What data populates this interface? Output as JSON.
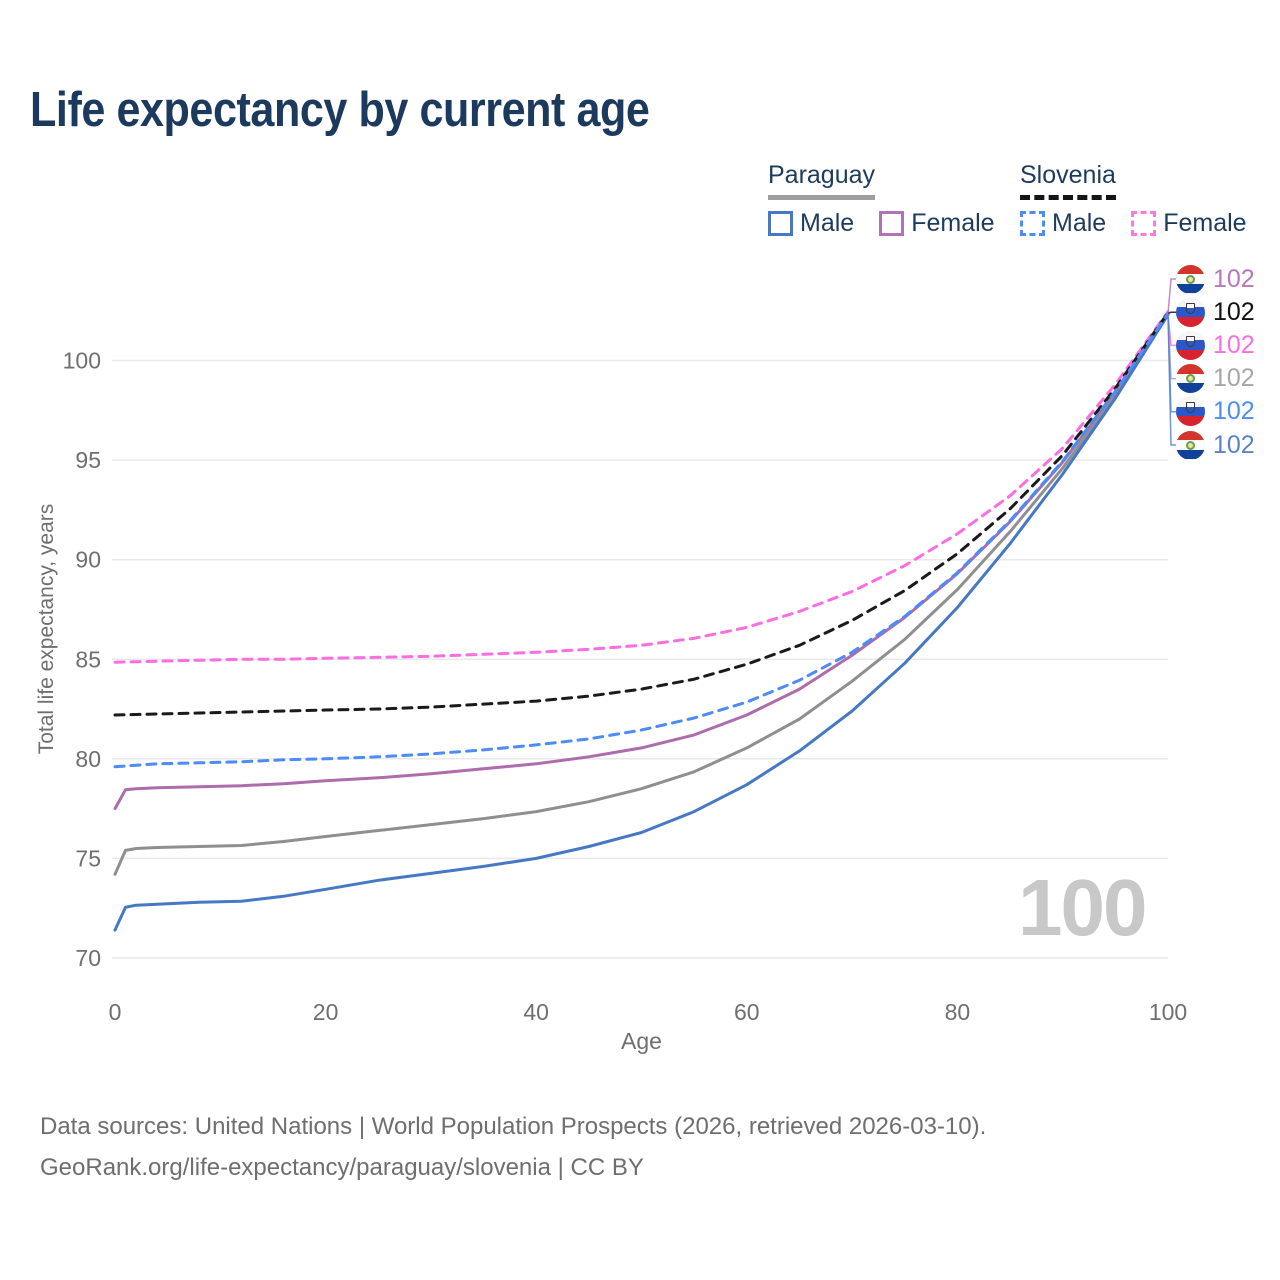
{
  "title": "Life expectancy by current age",
  "watermark": "100",
  "legend": {
    "groups": [
      {
        "name": "Paraguay",
        "line_style": "solid",
        "underline_color": "#9e9e9e",
        "items": [
          {
            "label": "Male",
            "color": "#4778c4"
          },
          {
            "label": "Female",
            "color": "#b273b2"
          }
        ]
      },
      {
        "name": "Slovenia",
        "line_style": "dashed",
        "underline_color": "#151515",
        "items": [
          {
            "label": "Male",
            "color": "#4d8bf5"
          },
          {
            "label": "Female",
            "color": "#fb7ae0"
          }
        ]
      }
    ]
  },
  "end_labels": [
    {
      "flag": "paraguay",
      "series": "paraguay-female",
      "value": "102",
      "color": "#b877b8"
    },
    {
      "flag": "slovenia",
      "series": "slovenia-both",
      "value": "102",
      "color": "#111111"
    },
    {
      "flag": "slovenia",
      "series": "slovenia-female",
      "value": "102",
      "color": "#fb6ee0"
    },
    {
      "flag": "paraguay",
      "series": "paraguay-both",
      "value": "102",
      "color": "#a6a6a6"
    },
    {
      "flag": "slovenia",
      "series": "slovenia-male",
      "value": "102",
      "color": "#4d8bf5"
    },
    {
      "flag": "paraguay",
      "series": "paraguay-male",
      "value": "102",
      "color": "#5b82c9"
    }
  ],
  "footer": {
    "line1": "Data sources: United Nations | World Population Prospects (2026, retrieved 2026-03-10).",
    "line2": "GeoRank.org/life-expectancy/paraguay/slovenia | CC BY"
  },
  "colors": {
    "title_text": "#1c3a5e",
    "legend_text": "#1d3b5e",
    "grid": "#e9e9e9",
    "tick_text": "#6f6f6f",
    "axis_title_text": "#6f6f6f",
    "watermark": "#c8c8c8",
    "footer_text": "#6e6e6e"
  },
  "chart_data": {
    "type": "line",
    "title": "Life expectancy by current age",
    "xlabel": "Age",
    "ylabel": "Total life expectancy, years",
    "xlim": [
      0,
      100
    ],
    "ylim": [
      70,
      102.5
    ],
    "xticks": [
      0,
      20,
      40,
      60,
      80,
      100
    ],
    "yticks": [
      70,
      75,
      80,
      85,
      90,
      95,
      100
    ],
    "grid": "horizontal",
    "legend_position": "top-right",
    "series": [
      {
        "id": "paraguay-female",
        "name": "Paraguay Female",
        "country": "Paraguay",
        "sex": "female",
        "color": "#ad6cac",
        "dashed": false,
        "points": [
          [
            0,
            77.5
          ],
          [
            1,
            78.45
          ],
          [
            2,
            78.5
          ],
          [
            4,
            78.55
          ],
          [
            8,
            78.6
          ],
          [
            12,
            78.65
          ],
          [
            16,
            78.75
          ],
          [
            20,
            78.9
          ],
          [
            25,
            79.05
          ],
          [
            30,
            79.25
          ],
          [
            35,
            79.5
          ],
          [
            40,
            79.75
          ],
          [
            45,
            80.1
          ],
          [
            50,
            80.55
          ],
          [
            55,
            81.2
          ],
          [
            60,
            82.2
          ],
          [
            65,
            83.5
          ],
          [
            70,
            85.2
          ],
          [
            75,
            87.1
          ],
          [
            80,
            89.3
          ],
          [
            85,
            91.9
          ],
          [
            90,
            94.9
          ],
          [
            95,
            98.4
          ],
          [
            100,
            102.35
          ]
        ]
      },
      {
        "id": "paraguay-both",
        "name": "Paraguay (both sexes)",
        "country": "Paraguay",
        "sex": "both",
        "color": "#8f8f8f",
        "dashed": false,
        "points": [
          [
            0,
            74.2
          ],
          [
            1,
            75.4
          ],
          [
            2,
            75.5
          ],
          [
            4,
            75.55
          ],
          [
            8,
            75.6
          ],
          [
            12,
            75.65
          ],
          [
            16,
            75.85
          ],
          [
            20,
            76.1
          ],
          [
            25,
            76.4
          ],
          [
            30,
            76.7
          ],
          [
            35,
            77.0
          ],
          [
            40,
            77.35
          ],
          [
            45,
            77.85
          ],
          [
            50,
            78.5
          ],
          [
            55,
            79.35
          ],
          [
            60,
            80.55
          ],
          [
            65,
            82.0
          ],
          [
            70,
            83.9
          ],
          [
            75,
            86.0
          ],
          [
            80,
            88.5
          ],
          [
            85,
            91.4
          ],
          [
            90,
            94.6
          ],
          [
            95,
            98.25
          ],
          [
            100,
            102.3
          ]
        ]
      },
      {
        "id": "paraguay-male",
        "name": "Paraguay Male",
        "country": "Paraguay",
        "sex": "male",
        "color": "#4778c4",
        "dashed": false,
        "points": [
          [
            0,
            71.4
          ],
          [
            1,
            72.55
          ],
          [
            2,
            72.65
          ],
          [
            4,
            72.7
          ],
          [
            8,
            72.8
          ],
          [
            12,
            72.85
          ],
          [
            16,
            73.1
          ],
          [
            20,
            73.45
          ],
          [
            25,
            73.9
          ],
          [
            30,
            74.25
          ],
          [
            35,
            74.6
          ],
          [
            40,
            75.0
          ],
          [
            45,
            75.6
          ],
          [
            50,
            76.3
          ],
          [
            55,
            77.35
          ],
          [
            60,
            78.7
          ],
          [
            65,
            80.4
          ],
          [
            70,
            82.4
          ],
          [
            75,
            84.8
          ],
          [
            80,
            87.6
          ],
          [
            85,
            90.8
          ],
          [
            90,
            94.3
          ],
          [
            95,
            98.1
          ],
          [
            100,
            102.3
          ]
        ]
      },
      {
        "id": "slovenia-female",
        "name": "Slovenia Female",
        "country": "Slovenia",
        "sex": "female",
        "color": "#fb6ee0",
        "dashed": true,
        "points": [
          [
            0,
            84.85
          ],
          [
            4,
            84.9
          ],
          [
            8,
            84.95
          ],
          [
            12,
            85.0
          ],
          [
            16,
            85.0
          ],
          [
            20,
            85.05
          ],
          [
            25,
            85.1
          ],
          [
            30,
            85.15
          ],
          [
            35,
            85.25
          ],
          [
            40,
            85.35
          ],
          [
            45,
            85.5
          ],
          [
            50,
            85.7
          ],
          [
            55,
            86.05
          ],
          [
            60,
            86.6
          ],
          [
            65,
            87.4
          ],
          [
            70,
            88.4
          ],
          [
            75,
            89.7
          ],
          [
            80,
            91.3
          ],
          [
            85,
            93.2
          ],
          [
            90,
            95.6
          ],
          [
            95,
            98.8
          ],
          [
            100,
            102.45
          ]
        ]
      },
      {
        "id": "slovenia-both",
        "name": "Slovenia (both sexes)",
        "country": "Slovenia",
        "sex": "both",
        "color": "#1a1a1a",
        "dashed": true,
        "points": [
          [
            0,
            82.2
          ],
          [
            4,
            82.25
          ],
          [
            8,
            82.3
          ],
          [
            12,
            82.35
          ],
          [
            16,
            82.4
          ],
          [
            20,
            82.45
          ],
          [
            25,
            82.5
          ],
          [
            30,
            82.6
          ],
          [
            35,
            82.75
          ],
          [
            40,
            82.9
          ],
          [
            45,
            83.15
          ],
          [
            50,
            83.5
          ],
          [
            55,
            84.0
          ],
          [
            60,
            84.75
          ],
          [
            65,
            85.7
          ],
          [
            70,
            86.95
          ],
          [
            75,
            88.45
          ],
          [
            80,
            90.3
          ],
          [
            85,
            92.55
          ],
          [
            90,
            95.25
          ],
          [
            95,
            98.6
          ],
          [
            100,
            102.4
          ]
        ]
      },
      {
        "id": "slovenia-male",
        "name": "Slovenia Male",
        "country": "Slovenia",
        "sex": "male",
        "color": "#4d8bf5",
        "dashed": true,
        "points": [
          [
            0,
            79.6
          ],
          [
            4,
            79.75
          ],
          [
            8,
            79.8
          ],
          [
            12,
            79.85
          ],
          [
            16,
            79.95
          ],
          [
            20,
            80.0
          ],
          [
            25,
            80.1
          ],
          [
            30,
            80.25
          ],
          [
            35,
            80.45
          ],
          [
            40,
            80.7
          ],
          [
            45,
            81.0
          ],
          [
            50,
            81.45
          ],
          [
            55,
            82.05
          ],
          [
            60,
            82.85
          ],
          [
            65,
            83.95
          ],
          [
            70,
            85.35
          ],
          [
            75,
            87.15
          ],
          [
            80,
            89.35
          ],
          [
            85,
            91.95
          ],
          [
            90,
            94.95
          ],
          [
            95,
            98.45
          ],
          [
            100,
            102.37
          ]
        ]
      }
    ]
  }
}
